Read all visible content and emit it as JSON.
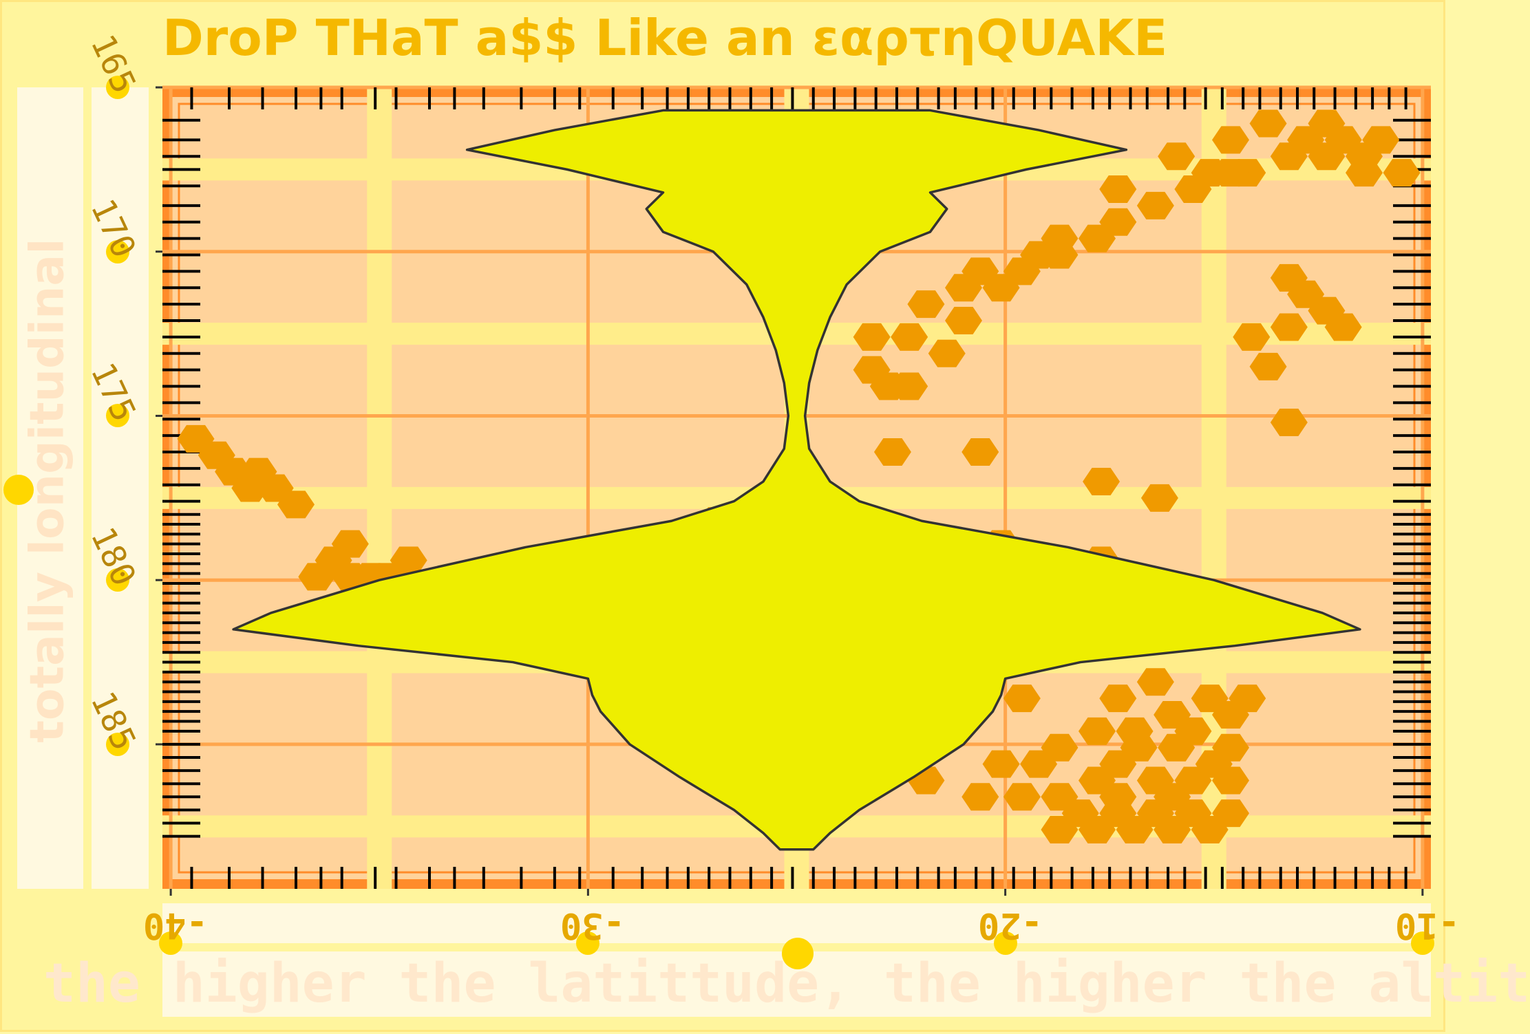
{
  "chart_data": {
    "type": "hexbin+violin+rug",
    "title": "DroP THaT a$$ Like an εαρτηQUAKE",
    "xlabel": "the higher the latittude, the higher the altit",
    "ylabel": "totally longitudinal",
    "xlim": [
      -40.2,
      -9.8
    ],
    "ylim": [
      165.0,
      189.4
    ],
    "y_reversed": true,
    "x_ticks": [
      "-40",
      "-30",
      "-20",
      "-10"
    ],
    "y_ticks": [
      "165",
      "170",
      "175",
      "180",
      "185"
    ],
    "grid": true,
    "colors": {
      "panel": "#ffd39b",
      "grid_major": "#ffa64d",
      "grid_minor": "#ffed8a",
      "hex": "#f09a00",
      "violin_fill": "#eeee00",
      "violin_stroke": "#333333",
      "frame": "#ff8c2a",
      "rug": "#000000"
    },
    "hexbins": [
      [
        -39.4,
        175.7
      ],
      [
        -38.9,
        176.2
      ],
      [
        -38.5,
        176.7
      ],
      [
        -37.9,
        176.7
      ],
      [
        -38.1,
        177.2
      ],
      [
        -37.5,
        177.2
      ],
      [
        -37.0,
        177.7
      ],
      [
        -35.7,
        178.9
      ],
      [
        -36.1,
        179.4
      ],
      [
        -35.7,
        179.9
      ],
      [
        -36.5,
        179.9
      ],
      [
        -35.2,
        179.9
      ],
      [
        -34.3,
        179.4
      ],
      [
        -34.8,
        179.9
      ],
      [
        -26.9,
        178.2
      ],
      [
        -26.0,
        178.2
      ],
      [
        -25.5,
        178.7
      ],
      [
        -23.5,
        178.7
      ],
      [
        -22.6,
        178.7
      ],
      [
        -20.1,
        178.9
      ],
      [
        -17.7,
        179.4
      ],
      [
        -17.7,
        177.0
      ],
      [
        -16.3,
        177.5
      ],
      [
        -23.2,
        172.6
      ],
      [
        -22.3,
        172.6
      ],
      [
        -23.2,
        173.6
      ],
      [
        -22.8,
        174.1
      ],
      [
        -22.3,
        174.1
      ],
      [
        -21.4,
        173.1
      ],
      [
        -21.0,
        172.1
      ],
      [
        -21.9,
        171.6
      ],
      [
        -21.0,
        171.1
      ],
      [
        -20.1,
        171.1
      ],
      [
        -20.6,
        170.6
      ],
      [
        -19.6,
        170.6
      ],
      [
        -19.2,
        170.1
      ],
      [
        -18.7,
        169.6
      ],
      [
        -17.8,
        169.6
      ],
      [
        -17.3,
        169.1
      ],
      [
        -16.4,
        168.6
      ],
      [
        -15.5,
        168.1
      ],
      [
        -15.1,
        167.6
      ],
      [
        -14.2,
        167.6
      ],
      [
        -13.2,
        167.1
      ],
      [
        -12.3,
        167.1
      ],
      [
        -11.4,
        167.1
      ],
      [
        -11.0,
        166.6
      ],
      [
        -12.8,
        166.6
      ],
      [
        -14.6,
        166.6
      ],
      [
        -13.7,
        166.1
      ],
      [
        -12.3,
        166.1
      ],
      [
        -11.9,
        166.6
      ],
      [
        -14.6,
        167.6
      ],
      [
        -15.9,
        167.1
      ],
      [
        -17.3,
        168.1
      ],
      [
        -18.7,
        170.1
      ],
      [
        -11.4,
        167.6
      ],
      [
        -10.5,
        167.6
      ],
      [
        -13.2,
        170.8
      ],
      [
        -12.8,
        171.3
      ],
      [
        -12.3,
        171.8
      ],
      [
        -11.9,
        172.3
      ],
      [
        -13.2,
        172.3
      ],
      [
        -14.1,
        172.6
      ],
      [
        -13.7,
        173.5
      ],
      [
        -13.2,
        175.2
      ],
      [
        -22.7,
        176.1
      ],
      [
        -20.6,
        176.1
      ],
      [
        -18.7,
        185.1
      ],
      [
        -19.2,
        185.6
      ],
      [
        -20.1,
        185.6
      ],
      [
        -21.9,
        186.1
      ],
      [
        -20.6,
        186.6
      ],
      [
        -19.6,
        186.6
      ],
      [
        -18.7,
        186.6
      ],
      [
        -17.8,
        186.1
      ],
      [
        -17.3,
        185.6
      ],
      [
        -16.8,
        185.1
      ],
      [
        -15.9,
        185.1
      ],
      [
        -16.4,
        186.1
      ],
      [
        -15.5,
        186.1
      ],
      [
        -15.0,
        185.6
      ],
      [
        -14.6,
        186.1
      ],
      [
        -16.0,
        186.6
      ],
      [
        -17.3,
        186.6
      ],
      [
        -18.2,
        187.1
      ],
      [
        -17.3,
        187.1
      ],
      [
        -16.4,
        187.1
      ],
      [
        -15.5,
        187.1
      ],
      [
        -14.6,
        187.1
      ],
      [
        -18.7,
        187.6
      ],
      [
        -17.8,
        187.6
      ],
      [
        -16.9,
        187.6
      ],
      [
        -16.0,
        187.6
      ],
      [
        -15.1,
        187.6
      ],
      [
        -14.6,
        185.1
      ],
      [
        -17.8,
        184.6
      ],
      [
        -16.9,
        184.6
      ],
      [
        -16.0,
        184.1
      ],
      [
        -15.5,
        184.6
      ],
      [
        -14.6,
        184.1
      ],
      [
        -15.1,
        183.6
      ],
      [
        -14.2,
        183.6
      ],
      [
        -19.6,
        183.6
      ],
      [
        -17.3,
        183.6
      ],
      [
        -16.4,
        183.1
      ]
    ],
    "violin": {
      "x_center": -25.0,
      "y_range": [
        165.7,
        188.2
      ],
      "profile": [
        [
          165.7,
          3.2
        ],
        [
          166.3,
          5.8
        ],
        [
          166.9,
          7.9
        ],
        [
          167.5,
          5.5
        ],
        [
          168.2,
          3.2
        ],
        [
          168.7,
          3.6
        ],
        [
          169.4,
          3.2
        ],
        [
          170.0,
          2.0
        ],
        [
          171.0,
          1.2
        ],
        [
          172.0,
          0.8
        ],
        [
          173.0,
          0.5
        ],
        [
          174.0,
          0.3
        ],
        [
          175.0,
          0.2
        ],
        [
          176.0,
          0.3
        ],
        [
          177.0,
          0.8
        ],
        [
          177.6,
          1.5
        ],
        [
          178.2,
          3.0
        ],
        [
          179.0,
          6.5
        ],
        [
          180.0,
          10.0
        ],
        [
          181.0,
          12.6
        ],
        [
          181.5,
          13.5
        ],
        [
          182.0,
          10.5
        ],
        [
          182.5,
          6.8
        ],
        [
          183.0,
          5.0
        ],
        [
          183.5,
          4.9
        ],
        [
          184.0,
          4.7
        ],
        [
          185.0,
          4.0
        ],
        [
          186.0,
          2.8
        ],
        [
          187.0,
          1.5
        ],
        [
          187.7,
          0.8
        ],
        [
          188.2,
          0.4
        ]
      ]
    },
    "rug_x": [
      -39.5,
      -38.6,
      -37.8,
      -37.0,
      -36.4,
      -35.9,
      -35.1,
      -34.6,
      -33.8,
      -33.2,
      -32.5,
      -31.6,
      -30.8,
      -30.2,
      -29.4,
      -28.7,
      -28.1,
      -27.6,
      -27.1,
      -26.6,
      -26.1,
      -25.6,
      -25.1,
      -24.6,
      -24.1,
      -23.6,
      -23.1,
      -22.6,
      -22.1,
      -21.6,
      -21.2,
      -20.7,
      -20.3,
      -19.8,
      -19.3,
      -18.9,
      -18.4,
      -17.9,
      -17.5,
      -17.0,
      -16.6,
      -16.1,
      -15.7,
      -15.2,
      -14.8,
      -14.3,
      -13.9,
      -13.4,
      -13.0,
      -12.6,
      -12.1,
      -11.6,
      -11.2,
      -10.8,
      -10.4
    ],
    "rug_y": [
      166.0,
      166.6,
      167.1,
      167.5,
      168.0,
      168.6,
      169.1,
      169.6,
      170.1,
      170.6,
      171.1,
      171.6,
      172.1,
      172.6,
      173.1,
      173.6,
      174.1,
      174.6,
      175.1,
      175.6,
      176.1,
      176.6,
      177.1,
      177.6,
      178.0,
      178.3,
      178.6,
      178.9,
      179.2,
      179.5,
      179.8,
      180.1,
      180.4,
      180.7,
      181.0,
      181.3,
      181.6,
      181.9,
      182.2,
      182.5,
      182.8,
      183.1,
      183.4,
      183.7,
      184.0,
      184.3,
      184.6,
      185.0,
      185.4,
      185.8,
      186.2,
      186.6,
      187.0,
      187.4,
      187.8
    ]
  }
}
